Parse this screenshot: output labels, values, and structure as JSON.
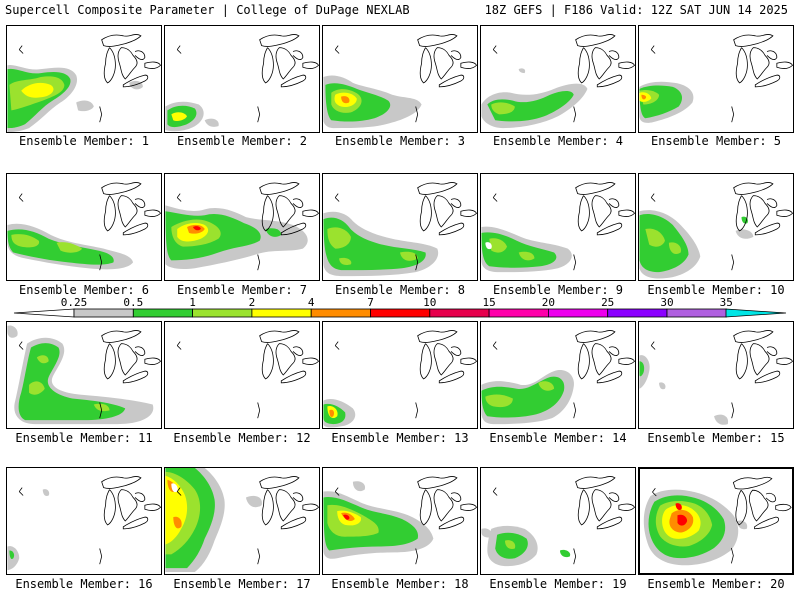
{
  "header": {
    "left": "Supercell Composite Parameter | College of DuPage NEXLAB",
    "right": "18Z GEFS | F186 Valid: 12Z SAT JUN 14 2025"
  },
  "legend": {
    "ticks": [
      "0.25",
      "0.5",
      "1",
      "2",
      "4",
      "7",
      "10",
      "15",
      "20",
      "25",
      "30",
      "35"
    ],
    "colors": [
      "#c8c8c8",
      "#32cd32",
      "#9be22e",
      "#ffff00",
      "#ff8c00",
      "#ff0000",
      "#e6004c",
      "#ff00aa",
      "#ee00ee",
      "#8b00ff",
      "#b060e0",
      "#00e5e5"
    ]
  },
  "panels": [
    {
      "label": "Ensemble Member: 1"
    },
    {
      "label": "Ensemble Member: 2"
    },
    {
      "label": "Ensemble Member: 3"
    },
    {
      "label": "Ensemble Member: 4"
    },
    {
      "label": "Ensemble Member: 5"
    },
    {
      "label": "Ensemble Member: 6"
    },
    {
      "label": "Ensemble Member: 7"
    },
    {
      "label": "Ensemble Member: 8"
    },
    {
      "label": "Ensemble Member: 9"
    },
    {
      "label": "Ensemble Member: 10"
    },
    {
      "label": "Ensemble Member: 11"
    },
    {
      "label": "Ensemble Member: 12"
    },
    {
      "label": "Ensemble Member: 13"
    },
    {
      "label": "Ensemble Member: 14"
    },
    {
      "label": "Ensemble Member: 15"
    },
    {
      "label": "Ensemble Member: 16"
    },
    {
      "label": "Ensemble Member: 17"
    },
    {
      "label": "Ensemble Member: 18"
    },
    {
      "label": "Ensemble Member: 19"
    },
    {
      "label": "Ensemble Member: 20"
    }
  ]
}
